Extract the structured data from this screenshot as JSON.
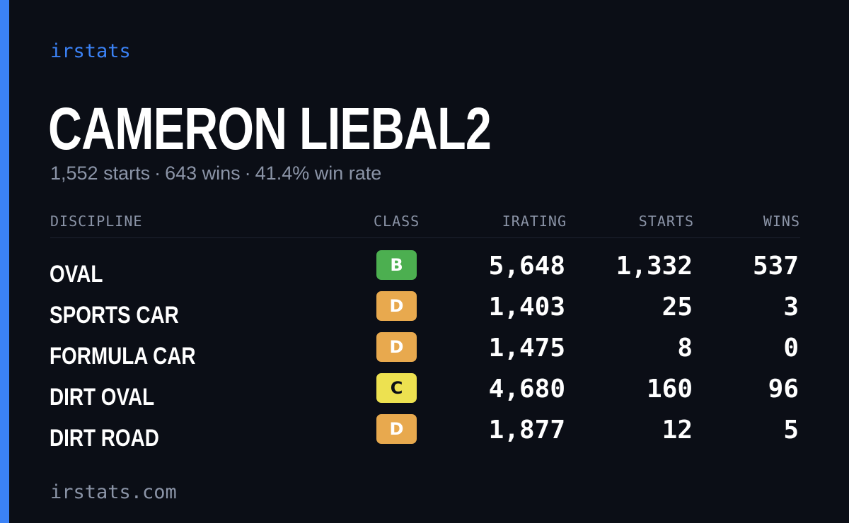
{
  "brand": "irstats",
  "driver": {
    "name": "CAMERON LIEBAL2",
    "starts": "1,552 starts",
    "wins": "643 wins",
    "win_rate": "41.4% win rate",
    "separator": "·"
  },
  "table": {
    "headers": {
      "discipline": "DISCIPLINE",
      "class": "CLASS",
      "irating": "IRATING",
      "starts": "STARTS",
      "wins": "WINS"
    },
    "rows": [
      {
        "discipline": "OVAL",
        "class": "B",
        "class_color": "#4caf50",
        "irating": "5,648",
        "starts": "1,332",
        "wins": "537"
      },
      {
        "discipline": "SPORTS CAR",
        "class": "D",
        "class_color": "#e8a94e",
        "irating": "1,403",
        "starts": "25",
        "wins": "3"
      },
      {
        "discipline": "FORMULA CAR",
        "class": "D",
        "class_color": "#e8a94e",
        "irating": "1,475",
        "starts": "8",
        "wins": "0"
      },
      {
        "discipline": "DIRT OVAL",
        "class": "C",
        "class_color": "#ede150",
        "irating": "4,680",
        "starts": "160",
        "wins": "96"
      },
      {
        "discipline": "DIRT ROAD",
        "class": "D",
        "class_color": "#e8a94e",
        "irating": "1,877",
        "starts": "12",
        "wins": "5"
      }
    ]
  },
  "footer": {
    "url": "irstats.com"
  },
  "colors": {
    "background": "#0b0e16",
    "accent": "#3b82f6",
    "muted_text": "#8b94a7",
    "class_b": "#4caf50",
    "class_c": "#ede150",
    "class_d": "#e8a94e"
  }
}
